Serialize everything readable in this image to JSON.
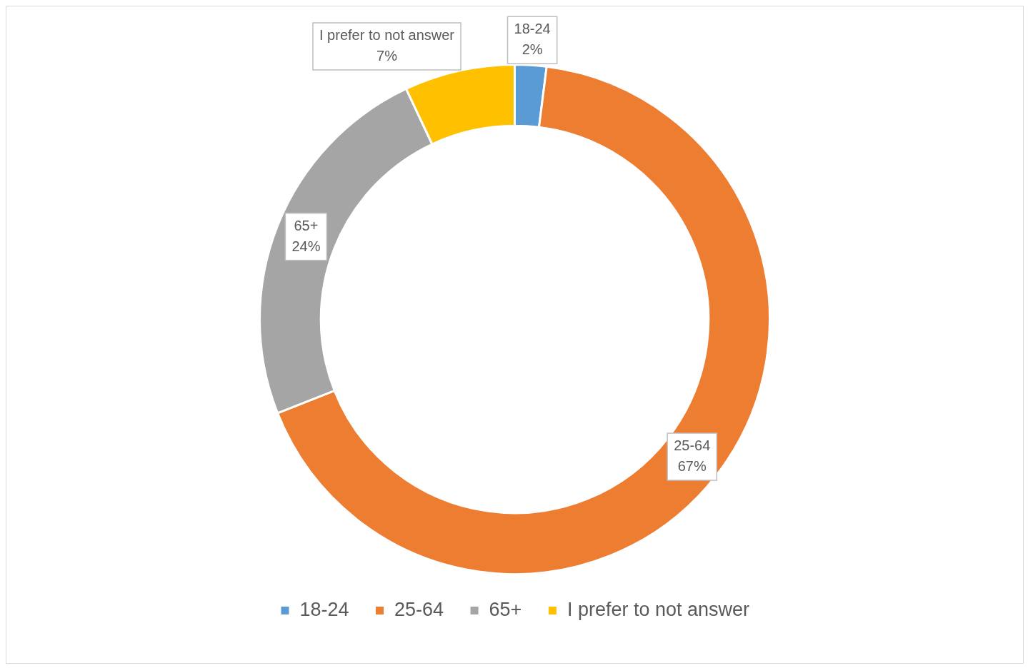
{
  "chart_data": {
    "type": "donut",
    "categories": [
      "18-24",
      "25-64",
      "65+",
      "I prefer to not answer"
    ],
    "values": [
      2,
      67,
      24,
      7
    ],
    "colors": [
      "#5b9bd5",
      "#ed7d31",
      "#a5a5a5",
      "#ffc000"
    ],
    "value_labels": [
      "2%",
      "67%",
      "24%",
      "7%"
    ],
    "legend": "bottom"
  }
}
